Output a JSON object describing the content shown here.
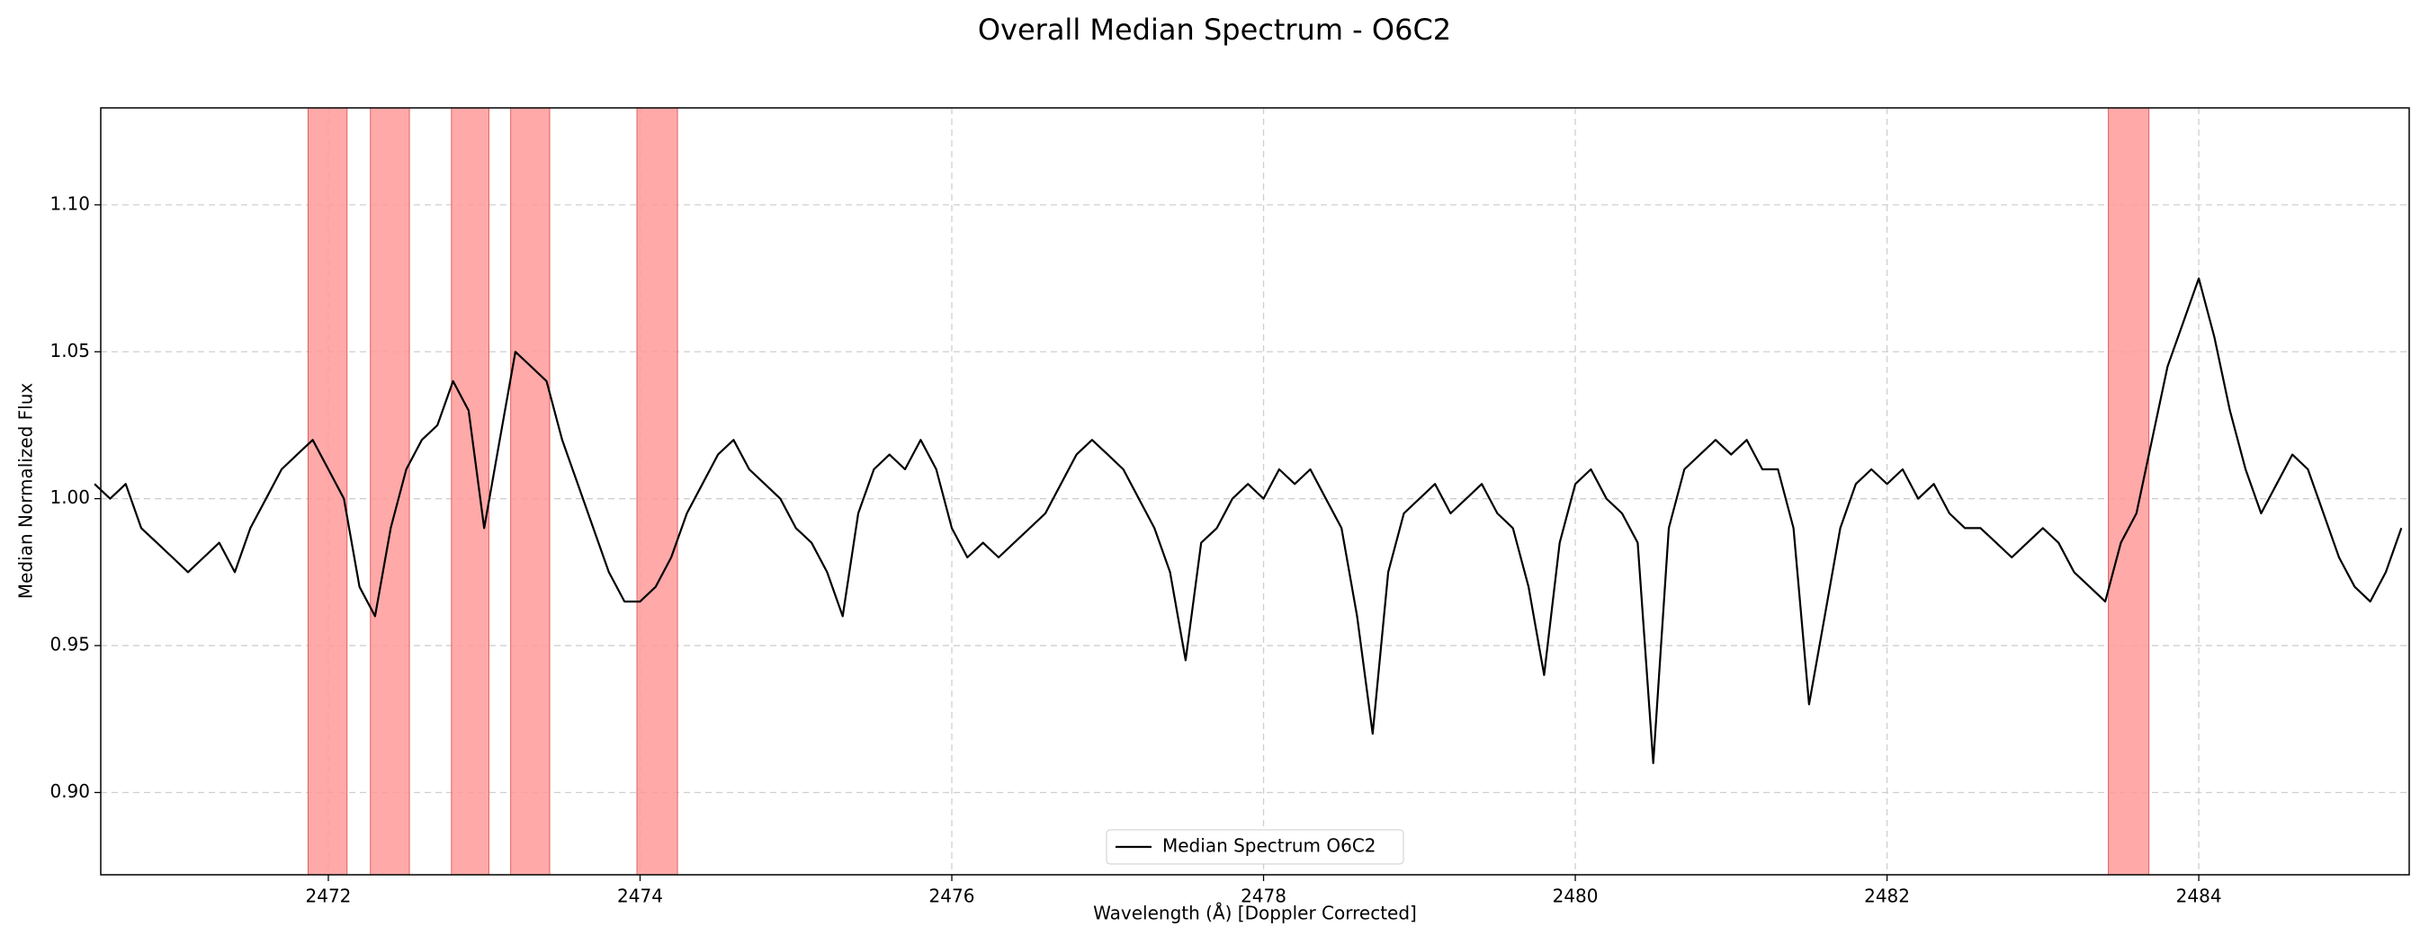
{
  "chart_data": {
    "type": "line",
    "title": "Overall Median Spectrum - O6C2",
    "x_label": "Wavelength (Å) [Doppler Corrected]",
    "y_label": "Median Normalized Flux",
    "xlim": [
      2470.54,
      2485.35
    ],
    "ylim": [
      0.872,
      1.133
    ],
    "xticks": [
      2472,
      2474,
      2476,
      2478,
      2480,
      2482,
      2484
    ],
    "yticks": [
      {
        "value": 0.9,
        "label": "0.90"
      },
      0.95,
      {
        "value": 1,
        "label": "1.00"
      },
      1.05,
      {
        "value": 1.1,
        "label": "1.10"
      }
    ],
    "grid": true,
    "legend": "lower center",
    "spans": [
      [
        2471.87,
        2472.12
      ],
      [
        2472.27,
        2472.52
      ],
      [
        2472.79,
        2473.03
      ],
      [
        2473.17,
        2473.42
      ],
      [
        2473.98,
        2474.24
      ],
      [
        2483.42,
        2483.68
      ]
    ],
    "span_color": "#ff9a9a",
    "series": [
      {
        "name": "Median Spectrum O6C2",
        "color": "#000000",
        "x": [
          2470.5,
          2470.6,
          2470.7,
          2470.8,
          2470.9,
          2471.0,
          2471.1,
          2471.2,
          2471.3,
          2471.4,
          2471.5,
          2471.6,
          2471.7,
          2471.8,
          2471.9,
          2472.0,
          2472.1,
          2472.2,
          2472.3,
          2472.4,
          2472.5,
          2472.6,
          2472.7,
          2472.8,
          2472.9,
          2473.0,
          2473.1,
          2473.2,
          2473.3,
          2473.4,
          2473.5,
          2473.6,
          2473.7,
          2473.8,
          2473.9,
          2474.0,
          2474.1,
          2474.2,
          2474.3,
          2474.4,
          2474.5,
          2474.6,
          2474.7,
          2474.8,
          2474.9,
          2475.0,
          2475.1,
          2475.2,
          2475.3,
          2475.4,
          2475.5,
          2475.6,
          2475.7,
          2475.8,
          2475.9,
          2476.0,
          2476.1,
          2476.2,
          2476.3,
          2476.4,
          2476.5,
          2476.6,
          2476.7,
          2476.8,
          2476.9,
          2477.0,
          2477.1,
          2477.2,
          2477.3,
          2477.4,
          2477.5,
          2477.6,
          2477.7,
          2477.8,
          2477.9,
          2478.0,
          2478.1,
          2478.2,
          2478.3,
          2478.4,
          2478.5,
          2478.6,
          2478.7,
          2478.8,
          2478.9,
          2479.0,
          2479.1,
          2479.2,
          2479.3,
          2479.4,
          2479.5,
          2479.6,
          2479.7,
          2479.8,
          2479.9,
          2480.0,
          2480.1,
          2480.2,
          2480.3,
          2480.4,
          2480.5,
          2480.6,
          2480.7,
          2480.8,
          2480.9,
          2481.0,
          2481.1,
          2481.2,
          2481.3,
          2481.4,
          2481.5,
          2481.6,
          2481.7,
          2481.8,
          2481.9,
          2482.0,
          2482.1,
          2482.2,
          2482.3,
          2482.4,
          2482.5,
          2482.6,
          2482.7,
          2482.8,
          2482.9,
          2483.0,
          2483.1,
          2483.2,
          2483.3,
          2483.4,
          2483.5,
          2483.6,
          2483.7,
          2483.8,
          2483.9,
          2484.0,
          2484.1,
          2484.2,
          2484.3,
          2484.4,
          2484.5,
          2484.6,
          2484.7,
          2484.8,
          2484.9,
          2485.0,
          2485.1,
          2485.2,
          2485.3
        ],
        "values": [
          1.005,
          1.0,
          1.005,
          0.99,
          0.985,
          0.98,
          0.975,
          0.98,
          0.985,
          0.975,
          0.99,
          1.0,
          1.01,
          1.015,
          1.02,
          1.01,
          1.0,
          0.97,
          0.96,
          0.99,
          1.01,
          1.02,
          1.025,
          1.04,
          1.03,
          0.99,
          1.02,
          1.05,
          1.045,
          1.04,
          1.02,
          1.005,
          0.99,
          0.975,
          0.965,
          0.965,
          0.97,
          0.98,
          0.995,
          1.005,
          1.015,
          1.02,
          1.01,
          1.005,
          1.0,
          0.99,
          0.985,
          0.975,
          0.96,
          0.995,
          1.01,
          1.015,
          1.01,
          1.02,
          1.01,
          0.99,
          0.98,
          0.985,
          0.98,
          0.985,
          0.99,
          0.995,
          1.005,
          1.015,
          1.02,
          1.015,
          1.01,
          1.0,
          0.99,
          0.975,
          0.945,
          0.985,
          0.99,
          1.0,
          1.005,
          1.0,
          1.01,
          1.005,
          1.01,
          1.0,
          0.99,
          0.96,
          0.92,
          0.975,
          0.995,
          1.0,
          1.005,
          0.995,
          1.0,
          1.005,
          0.995,
          0.99,
          0.97,
          0.94,
          0.985,
          1.005,
          1.01,
          1.0,
          0.995,
          0.985,
          0.91,
          0.99,
          1.01,
          1.015,
          1.02,
          1.015,
          1.02,
          1.01,
          1.01,
          0.99,
          0.93,
          0.96,
          0.99,
          1.005,
          1.01,
          1.005,
          1.01,
          1.0,
          1.005,
          0.995,
          0.99,
          0.99,
          0.985,
          0.98,
          0.985,
          0.99,
          0.985,
          0.975,
          0.97,
          0.965,
          0.985,
          0.995,
          1.02,
          1.045,
          1.06,
          1.075,
          1.055,
          1.03,
          1.01,
          0.995,
          1.005,
          1.015,
          1.01,
          0.995,
          0.98,
          0.97,
          0.965,
          0.975,
          0.99
        ]
      }
    ]
  }
}
